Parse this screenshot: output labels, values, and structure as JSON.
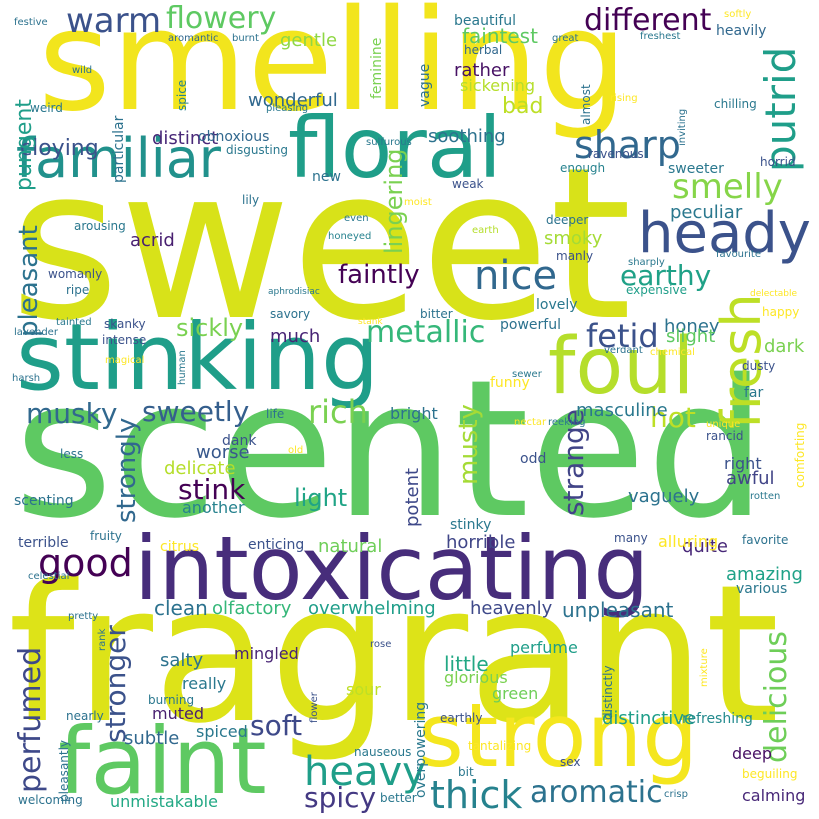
{
  "words": [
    {
      "text": "sweet",
      "color": "#d8e219"
    },
    {
      "text": "scented",
      "color": "#5ec962"
    },
    {
      "text": "fragrant",
      "color": "#dde318"
    },
    {
      "text": "smelling",
      "color": "#f2e51d"
    },
    {
      "text": "intoxicating",
      "color": "#472d7b"
    },
    {
      "text": "stinking",
      "color": "#1f9e89"
    },
    {
      "text": "floral",
      "color": "#1f9e89"
    },
    {
      "text": "faint",
      "color": "#5ec962"
    },
    {
      "text": "strong",
      "color": "#f4e61e"
    },
    {
      "text": "foul",
      "color": "#b5de2b"
    },
    {
      "text": "familiar",
      "color": "#21918c"
    },
    {
      "text": "heady",
      "color": "#3b528b"
    },
    {
      "text": "fresh",
      "color": "#bddf26"
    },
    {
      "text": "warm",
      "color": "#3b528b"
    },
    {
      "text": "flowery",
      "color": "#5ec962"
    },
    {
      "text": "different",
      "color": "#440154"
    },
    {
      "text": "putrid",
      "color": "#1f9e89"
    },
    {
      "text": "smelly",
      "color": "#86d549"
    },
    {
      "text": "sharp",
      "color": "#31688e"
    },
    {
      "text": "nice",
      "color": "#31688e"
    },
    {
      "text": "good",
      "color": "#440154"
    },
    {
      "text": "heavy",
      "color": "#1f9e89"
    },
    {
      "text": "thick",
      "color": "#26828e"
    },
    {
      "text": "aromatic",
      "color": "#2c728e"
    },
    {
      "text": "rich",
      "color": "#7ad151"
    },
    {
      "text": "metallic",
      "color": "#35b779"
    },
    {
      "text": "sweetly",
      "color": "#355f8d"
    },
    {
      "text": "fetid",
      "color": "#3b528b"
    },
    {
      "text": "delicious",
      "color": "#6ece58"
    },
    {
      "text": "spicy",
      "color": "#443983"
    },
    {
      "text": "perfumed",
      "color": "#3e4989"
    },
    {
      "text": "soft",
      "color": "#3e4989"
    },
    {
      "text": "stink",
      "color": "#440154"
    },
    {
      "text": "strongly",
      "color": "#31688e"
    },
    {
      "text": "stronger",
      "color": "#3b528b"
    },
    {
      "text": "musky",
      "color": "#31688e"
    },
    {
      "text": "musty",
      "color": "#a5db36"
    },
    {
      "text": "strange",
      "color": "#414487"
    },
    {
      "text": "hot",
      "color": "#bddf26"
    },
    {
      "text": "earthy",
      "color": "#1fa187"
    },
    {
      "text": "faintly",
      "color": "#440154"
    },
    {
      "text": "pleasant",
      "color": "#2c728e"
    },
    {
      "text": "lingering",
      "color": "#7ad151"
    },
    {
      "text": "cloying",
      "color": "#3b528b"
    },
    {
      "text": "distinct",
      "color": "#482878"
    },
    {
      "text": "smoky",
      "color": "#a5db36"
    },
    {
      "text": "peculiar",
      "color": "#2a788e"
    },
    {
      "text": "sickly",
      "color": "#7ad151"
    },
    {
      "text": "light",
      "color": "#20a486"
    },
    {
      "text": "amazing",
      "color": "#1fa187"
    },
    {
      "text": "overwhelming",
      "color": "#1f9e89"
    },
    {
      "text": "unpleasant",
      "color": "#2c728e"
    },
    {
      "text": "heavenly",
      "color": "#3e4989"
    },
    {
      "text": "distinctive",
      "color": "#1f9e89"
    },
    {
      "text": "olfactory",
      "color": "#35b779"
    },
    {
      "text": "clean",
      "color": "#2c728e"
    },
    {
      "text": "horrible",
      "color": "#404688"
    },
    {
      "text": "masculine",
      "color": "#2a788e"
    },
    {
      "text": "quite",
      "color": "#482878"
    },
    {
      "text": "little",
      "color": "#22a884"
    },
    {
      "text": "bad",
      "color": "#bddf26"
    },
    {
      "text": "pungent",
      "color": "#1f9e89"
    },
    {
      "text": "faintest",
      "color": "#5ec962"
    },
    {
      "text": "gentle",
      "color": "#8fd744"
    },
    {
      "text": "rather",
      "color": "#471164"
    },
    {
      "text": "sickening",
      "color": "#b5de2b"
    },
    {
      "text": "soothing",
      "color": "#2c728e"
    },
    {
      "text": "wonderful",
      "color": "#31688e"
    },
    {
      "text": "much",
      "color": "#482475"
    },
    {
      "text": "honey",
      "color": "#2c728e"
    },
    {
      "text": "slight",
      "color": "#5ec962"
    },
    {
      "text": "dark",
      "color": "#7ad151"
    },
    {
      "text": "potent",
      "color": "#3e4989"
    },
    {
      "text": "worse",
      "color": "#38588c"
    },
    {
      "text": "delicate",
      "color": "#b5de2b"
    },
    {
      "text": "another",
      "color": "#26828e"
    },
    {
      "text": "acrid",
      "color": "#481f70"
    },
    {
      "text": "natural",
      "color": "#6ece58"
    },
    {
      "text": "alluring",
      "color": "#fde725"
    },
    {
      "text": "vaguely",
      "color": "#2c728e"
    },
    {
      "text": "awful",
      "color": "#414487"
    },
    {
      "text": "salty",
      "color": "#2c728e"
    },
    {
      "text": "mingled",
      "color": "#482475"
    },
    {
      "text": "muted",
      "color": "#481f70"
    },
    {
      "text": "subtle",
      "color": "#31688e"
    },
    {
      "text": "spiced",
      "color": "#2a788e"
    },
    {
      "text": "sour",
      "color": "#bddf26"
    },
    {
      "text": "green",
      "color": "#6ece58"
    },
    {
      "text": "perfume",
      "color": "#1f9e89"
    },
    {
      "text": "glorious",
      "color": "#7ad151"
    },
    {
      "text": "really",
      "color": "#2a788e"
    },
    {
      "text": "deep",
      "color": "#471164"
    },
    {
      "text": "refreshing",
      "color": "#238a8d"
    },
    {
      "text": "calming",
      "color": "#482878"
    },
    {
      "text": "unmistakable",
      "color": "#22a884"
    },
    {
      "text": "bright",
      "color": "#2c728e"
    },
    {
      "text": "right",
      "color": "#3b528b"
    },
    {
      "text": "beautiful",
      "color": "#2a788e"
    },
    {
      "text": "heavily",
      "color": "#31688e"
    },
    {
      "text": "feminine",
      "color": "#7ad151"
    },
    {
      "text": "vague",
      "color": "#2c728e"
    },
    {
      "text": "herbal",
      "color": "#31688e"
    },
    {
      "text": "almost",
      "color": "#2c728e"
    },
    {
      "text": "sweeter",
      "color": "#2a788e"
    },
    {
      "text": "ravenous",
      "color": "#3b528b"
    },
    {
      "text": "enough",
      "color": "#26828e"
    },
    {
      "text": "new",
      "color": "#2c728e"
    },
    {
      "text": "weak",
      "color": "#3b528b"
    },
    {
      "text": "obnoxious",
      "color": "#31688e"
    },
    {
      "text": "disgusting",
      "color": "#2a788e"
    },
    {
      "text": "sulfurous",
      "color": "#2a788e"
    },
    {
      "text": "particular",
      "color": "#2c728e"
    },
    {
      "text": "spice",
      "color": "#26828e"
    },
    {
      "text": "weird",
      "color": "#2a788e"
    },
    {
      "text": "wild",
      "color": "#2c728e"
    },
    {
      "text": "aromantic",
      "color": "#31688e"
    },
    {
      "text": "burnt",
      "color": "#2c728e"
    },
    {
      "text": "festive",
      "color": "#2c728e"
    },
    {
      "text": "pleasing",
      "color": "#2a788e"
    },
    {
      "text": "great",
      "color": "#2c728e"
    },
    {
      "text": "freshest",
      "color": "#2a788e"
    },
    {
      "text": "softly",
      "color": "#fde725"
    },
    {
      "text": "rising",
      "color": "#fde725"
    },
    {
      "text": "inviting",
      "color": "#2c728e"
    },
    {
      "text": "chilling",
      "color": "#2a788e"
    },
    {
      "text": "horrid",
      "color": "#3b528b"
    },
    {
      "text": "lily",
      "color": "#2c728e"
    },
    {
      "text": "moist",
      "color": "#fde725"
    },
    {
      "text": "even",
      "color": "#2a788e"
    },
    {
      "text": "honeyed",
      "color": "#26828e"
    },
    {
      "text": "earth",
      "color": "#b5de2b"
    },
    {
      "text": "deeper",
      "color": "#2c728e"
    },
    {
      "text": "arousing",
      "color": "#2a788e"
    },
    {
      "text": "manly",
      "color": "#3b528b"
    },
    {
      "text": "sharply",
      "color": "#2a788e"
    },
    {
      "text": "favourite",
      "color": "#2c728e"
    },
    {
      "text": "expensive",
      "color": "#1f9e89"
    },
    {
      "text": "delectable",
      "color": "#fde725"
    },
    {
      "text": "aphrodisiac",
      "color": "#2a788e"
    },
    {
      "text": "womanly",
      "color": "#3b528b"
    },
    {
      "text": "ripe",
      "color": "#2c728e"
    },
    {
      "text": "bitter",
      "color": "#2c728e"
    },
    {
      "text": "stank",
      "color": "#fde725"
    },
    {
      "text": "lovely",
      "color": "#2a788e"
    },
    {
      "text": "happy",
      "color": "#fde725"
    },
    {
      "text": "powerful",
      "color": "#2c728e"
    },
    {
      "text": "tainted",
      "color": "#2a788e"
    },
    {
      "text": "lavender",
      "color": "#2c728e"
    },
    {
      "text": "skanky",
      "color": "#3b528b"
    },
    {
      "text": "intense",
      "color": "#3b528b"
    },
    {
      "text": "savory",
      "color": "#2c728e"
    },
    {
      "text": "magical",
      "color": "#fde725"
    },
    {
      "text": "human",
      "color": "#2a788e"
    },
    {
      "text": "verdant",
      "color": "#2c728e"
    },
    {
      "text": "chemical",
      "color": "#fde725"
    },
    {
      "text": "dusty",
      "color": "#3b528b"
    },
    {
      "text": "harsh",
      "color": "#2c728e"
    },
    {
      "text": "sewer",
      "color": "#2a788e"
    },
    {
      "text": "funny",
      "color": "#fde725"
    },
    {
      "text": "far",
      "color": "#2a788e"
    },
    {
      "text": "life",
      "color": "#2c728e"
    },
    {
      "text": "nectar",
      "color": "#fde725"
    },
    {
      "text": "reeking",
      "color": "#2a788e"
    },
    {
      "text": "unique",
      "color": "#fde725"
    },
    {
      "text": "rancid",
      "color": "#3b528b"
    },
    {
      "text": "comforting",
      "color": "#fde725"
    },
    {
      "text": "dank",
      "color": "#3b528b"
    },
    {
      "text": "less",
      "color": "#2c728e"
    },
    {
      "text": "old",
      "color": "#fde725"
    },
    {
      "text": "odd",
      "color": "#3b528b"
    },
    {
      "text": "rotten",
      "color": "#2a788e"
    },
    {
      "text": "scenting",
      "color": "#2c728e"
    },
    {
      "text": "terrible",
      "color": "#3b528b"
    },
    {
      "text": "fruity",
      "color": "#2c728e"
    },
    {
      "text": "citrus",
      "color": "#fde725"
    },
    {
      "text": "enticing",
      "color": "#3b528b"
    },
    {
      "text": "stinky",
      "color": "#2a788e"
    },
    {
      "text": "many",
      "color": "#3b528b"
    },
    {
      "text": "favorite",
      "color": "#2c728e"
    },
    {
      "text": "celestial",
      "color": "#2c728e"
    },
    {
      "text": "various",
      "color": "#2a788e"
    },
    {
      "text": "pretty",
      "color": "#2c728e"
    },
    {
      "text": "rank",
      "color": "#2c728e"
    },
    {
      "text": "rose",
      "color": "#3b528b"
    },
    {
      "text": "flower",
      "color": "#3b528b"
    },
    {
      "text": "mixture",
      "color": "#fde725"
    },
    {
      "text": "burning",
      "color": "#2a788e"
    },
    {
      "text": "nearly",
      "color": "#2c728e"
    },
    {
      "text": "overpowering",
      "color": "#2a788e"
    },
    {
      "text": "distinctly",
      "color": "#2c728e"
    },
    {
      "text": "earthly",
      "color": "#3b528b"
    },
    {
      "text": "tantalizing",
      "color": "#fde725"
    },
    {
      "text": "pleasantly",
      "color": "#2c728e"
    },
    {
      "text": "nauseous",
      "color": "#2a788e"
    },
    {
      "text": "sex",
      "color": "#3b528b"
    },
    {
      "text": "bit",
      "color": "#2a788e"
    },
    {
      "text": "beguiling",
      "color": "#fde725"
    },
    {
      "text": "welcoming",
      "color": "#2c728e"
    },
    {
      "text": "better",
      "color": "#2a788e"
    },
    {
      "text": "crisp",
      "color": "#2c728e"
    }
  ]
}
